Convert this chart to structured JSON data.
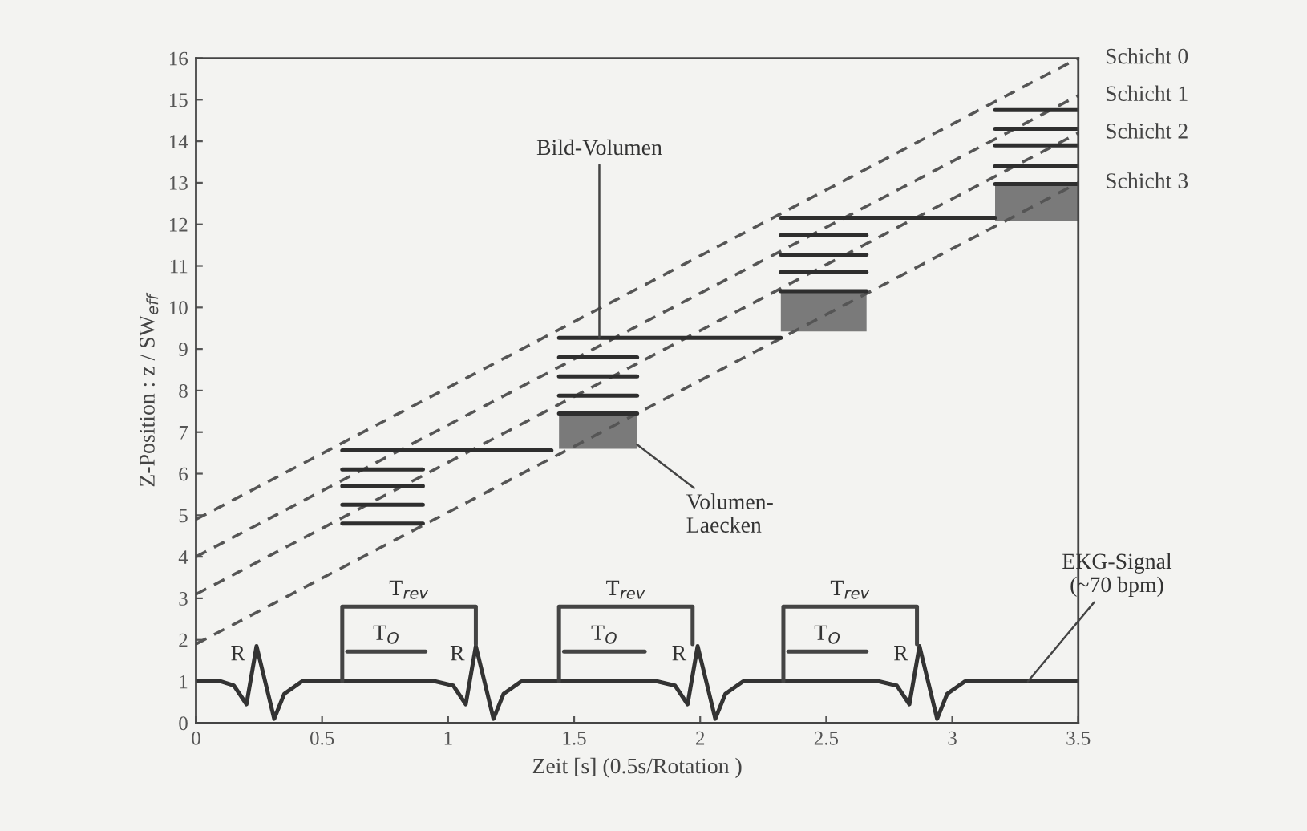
{
  "chart_data": {
    "type": "line",
    "xlabel": "Zeit [s] (0.5s/Rotation )",
    "ylabel": "Z-Position : z / SW$_{eff}$",
    "xlim": [
      0,
      3.5
    ],
    "xticks": [
      0,
      0.5,
      1,
      1.5,
      2,
      2.5,
      3,
      3.5
    ],
    "ylim": [
      0,
      16
    ],
    "yticks": [
      0,
      1,
      2,
      3,
      4,
      5,
      6,
      7,
      8,
      9,
      10,
      11,
      12,
      13,
      14,
      15,
      16
    ],
    "grid": false,
    "legend": false,
    "series": [
      {
        "name": "Schicht 0",
        "line_style": "dashed",
        "color": "#555555",
        "x": [
          0,
          3.5
        ],
        "values": [
          4.9,
          16
        ]
      },
      {
        "name": "Schicht 1",
        "line_style": "dashed",
        "color": "#555555",
        "x": [
          0,
          3.5
        ],
        "values": [
          4.0,
          15.1
        ]
      },
      {
        "name": "Schicht 2",
        "line_style": "dashed",
        "color": "#555555",
        "x": [
          0,
          3.5
        ],
        "values": [
          3.1,
          14.2
        ]
      },
      {
        "name": "Schicht 3",
        "line_style": "dashed",
        "color": "#555555",
        "x": [
          0,
          3.5
        ],
        "values": [
          1.9,
          13.0
        ]
      },
      {
        "color": "#2e2e2e",
        "x": [
          0.58,
          1.41
        ],
        "values": [
          6.56,
          6.56
        ]
      },
      {
        "color": "#2e2e2e",
        "x": [
          0.58,
          0.9
        ],
        "values": [
          6.1,
          6.1
        ]
      },
      {
        "color": "#2e2e2e",
        "x": [
          0.58,
          0.9
        ],
        "values": [
          5.7,
          5.7
        ]
      },
      {
        "color": "#2e2e2e",
        "x": [
          0.58,
          0.9
        ],
        "values": [
          5.25,
          5.25
        ]
      },
      {
        "color": "#2e2e2e",
        "x": [
          0.58,
          0.9
        ],
        "values": [
          4.8,
          4.8
        ]
      },
      {
        "color": "#2e2e2e",
        "x": [
          1.44,
          2.32
        ],
        "values": [
          9.27,
          9.27
        ]
      },
      {
        "color": "#2e2e2e",
        "x": [
          1.44,
          1.75
        ],
        "values": [
          8.8,
          8.8
        ]
      },
      {
        "color": "#2e2e2e",
        "x": [
          1.44,
          1.75
        ],
        "values": [
          8.34,
          8.34
        ]
      },
      {
        "color": "#2e2e2e",
        "x": [
          1.44,
          1.75
        ],
        "values": [
          7.88,
          7.88
        ]
      },
      {
        "color": "#2e2e2e",
        "x": [
          1.44,
          1.75
        ],
        "values": [
          7.45,
          7.45
        ],
        "lower": [
          6.6,
          6.6
        ],
        "upper": [
          7.45,
          7.45
        ]
      },
      {
        "color": "#2e2e2e",
        "x": [
          2.32,
          3.17
        ],
        "values": [
          12.16,
          12.16
        ]
      },
      {
        "color": "#2e2e2e",
        "x": [
          2.32,
          2.66
        ],
        "values": [
          11.74,
          11.74
        ]
      },
      {
        "color": "#2e2e2e",
        "x": [
          2.32,
          2.66
        ],
        "values": [
          11.27,
          11.27
        ]
      },
      {
        "color": "#2e2e2e",
        "x": [
          2.32,
          2.66
        ],
        "values": [
          10.85,
          10.85
        ]
      },
      {
        "color": "#2e2e2e",
        "x": [
          2.32,
          2.66
        ],
        "values": [
          10.39,
          10.39
        ],
        "lower": [
          9.42,
          9.42
        ],
        "upper": [
          10.39,
          10.39
        ]
      },
      {
        "color": "#2e2e2e",
        "x": [
          3.17,
          3.5
        ],
        "values": [
          14.75,
          14.75
        ]
      },
      {
        "color": "#2e2e2e",
        "x": [
          3.17,
          3.5
        ],
        "values": [
          14.3,
          14.3
        ]
      },
      {
        "color": "#2e2e2e",
        "x": [
          3.17,
          3.5
        ],
        "values": [
          13.9,
          13.9
        ]
      },
      {
        "color": "#2e2e2e",
        "x": [
          3.17,
          3.5
        ],
        "values": [
          13.4,
          13.4
        ]
      },
      {
        "color": "#2e2e2e",
        "x": [
          3.17,
          3.5
        ],
        "values": [
          12.97,
          12.97
        ],
        "lower": [
          12.08,
          12.08
        ],
        "upper": [
          12.97,
          12.97
        ]
      },
      {
        "color": "#333333",
        "x": [
          0,
          0.1,
          0.15,
          0.2,
          0.24,
          0.31,
          0.35,
          0.42,
          0.95,
          1.02,
          1.07,
          1.11,
          1.18,
          1.22,
          1.29,
          1.83,
          1.9,
          1.95,
          1.99,
          2.06,
          2.1,
          2.17,
          2.71,
          2.78,
          2.83,
          2.87,
          2.94,
          2.98,
          3.05,
          3.5
        ],
        "values": [
          1,
          1,
          0.9,
          0.45,
          1.85,
          0.1,
          0.7,
          1,
          1,
          0.9,
          0.45,
          1.85,
          0.1,
          0.7,
          1,
          1,
          0.9,
          0.45,
          1.85,
          0.1,
          0.7,
          1,
          1,
          0.9,
          0.45,
          1.85,
          0.1,
          0.7,
          1,
          1
        ]
      },
      {
        "color": "#444444",
        "x": [
          0.58,
          0.58,
          1.11,
          1.11
        ],
        "values": [
          1,
          2.8,
          2.8,
          1.9
        ]
      },
      {
        "color": "#444444",
        "x": [
          1.44,
          1.44,
          1.97,
          1.97
        ],
        "values": [
          1,
          2.8,
          2.8,
          1.9
        ]
      },
      {
        "color": "#444444",
        "x": [
          2.33,
          2.33,
          2.86,
          2.86
        ],
        "values": [
          1,
          2.8,
          2.8,
          1.9
        ]
      },
      {
        "color": "#444444",
        "x": [
          0.6,
          0.91
        ],
        "values": [
          1.72,
          1.72
        ]
      },
      {
        "color": "#444444",
        "x": [
          1.46,
          1.78
        ],
        "values": [
          1.72,
          1.72
        ]
      },
      {
        "color": "#444444",
        "x": [
          2.35,
          2.66
        ],
        "values": [
          1.72,
          1.72
        ]
      }
    ],
    "annotations": [
      {
        "text": "R",
        "x": 0.24,
        "y": 1.85
      },
      {
        "text": "R",
        "x": 1.11,
        "y": 1.85
      },
      {
        "text": "R",
        "x": 1.99,
        "y": 1.85
      },
      {
        "text": "R",
        "x": 2.87,
        "y": 1.85
      },
      {
        "text": "T$_{rev}$",
        "x": 0.845,
        "y": 2.8
      },
      {
        "text": "T$_{rev}$",
        "x": 1.705,
        "y": 2.8
      },
      {
        "text": "T$_{rev}$",
        "x": 2.595,
        "y": 2.8
      },
      {
        "text": "T$_{O}$",
        "x": 0.755,
        "y": 1.72
      },
      {
        "text": "T$_{O}$",
        "x": 1.62,
        "y": 1.72
      },
      {
        "text": "T$_{O}$",
        "x": 2.505,
        "y": 1.72
      },
      {
        "text": "Bild-Volumen",
        "x": 1.6,
        "y": 9.27
      },
      {
        "text": "Volumen-\nLaecken",
        "x": 1.75,
        "y": 6.7
      },
      {
        "text": "EKG-Signal\n(~70 bpm)",
        "x": 3.3,
        "y": 1.0
      }
    ]
  }
}
